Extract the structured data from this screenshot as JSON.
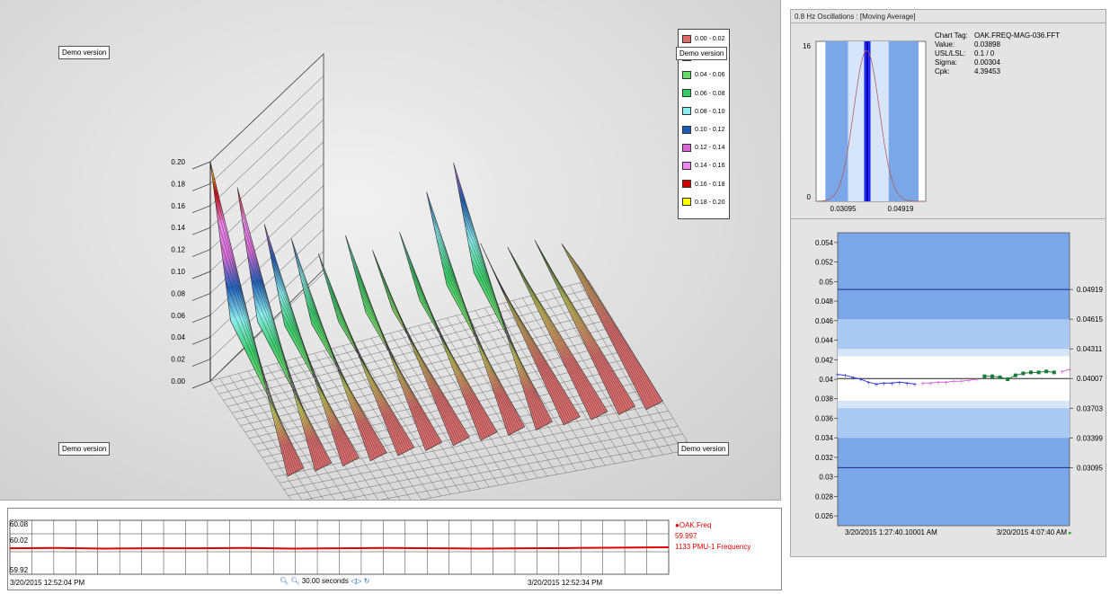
{
  "surface_panel": {
    "demo_labels": [
      "Demo version",
      "Demo version",
      "Demo version",
      "Demo version"
    ],
    "z_ticks": [
      "0.00",
      "0.02",
      "0.04",
      "0.06",
      "0.08",
      "0.10",
      "0.12",
      "0.14",
      "0.16",
      "0.18",
      "0.20"
    ],
    "legend": [
      {
        "label": "0.00 - 0.02",
        "color": "#e06a6a"
      },
      {
        "label": "0.02 - 0.04",
        "color": "#e8e860"
      },
      {
        "label": "0.04 - 0.06",
        "color": "#66dd66"
      },
      {
        "label": "0.06 - 0.08",
        "color": "#33cc66"
      },
      {
        "label": "0.08 - 0.10",
        "color": "#88eeee"
      },
      {
        "label": "0.10 - 0.12",
        "color": "#1a5ab8"
      },
      {
        "label": "0.12 - 0.14",
        "color": "#d868d8"
      },
      {
        "label": "0.14 - 0.16",
        "color": "#ee88ee"
      },
      {
        "label": "0.16 - 0.18",
        "color": "#cc0000"
      },
      {
        "label": "0.18 - 0.20",
        "color": "#ffff00"
      }
    ]
  },
  "histogram_panel": {
    "title": "0.8 Hz Oscillations : [Moving Average]",
    "y_top": "16",
    "y_bottom": "0",
    "x_labels": [
      "0.03095",
      "0.04919"
    ],
    "info": [
      {
        "key": "Chart Tag:",
        "value": "OAK.FREQ-MAG-036.FFT"
      },
      {
        "key": "Value:",
        "value": "0.03898"
      },
      {
        "key": "USL/LSL:",
        "value": "0.1 / 0"
      },
      {
        "key": "Sigma:",
        "value": "0.00304"
      },
      {
        "key": "Cpk:",
        "value": "4.39453"
      }
    ]
  },
  "control_chart": {
    "y_ticks": [
      "0.054",
      "0.052",
      "0.05",
      "0.048",
      "0.046",
      "0.044",
      "0.042",
      "0.04",
      "0.038",
      "0.036",
      "0.034",
      "0.032",
      "0.03",
      "0.028",
      "0.026"
    ],
    "right_labels": [
      "0.04919",
      "0.04615",
      "0.04311",
      "0.04007",
      "0.03703",
      "0.03399",
      "0.03095"
    ],
    "x_labels": [
      "3/20/2015 1:27:40.10001 AM",
      "3/20/2015 4:07:40 AM"
    ],
    "colors": {
      "outer": "#7ba7e8",
      "mid": "#a9c8f2",
      "inner": "#d6e5fa",
      "center": "#ffffff"
    }
  },
  "trend_strip": {
    "y_labels": [
      "60.08",
      "60.02",
      "59.92"
    ],
    "series_name": "OAK.Freq",
    "series_value": "59.997",
    "series_desc": "1133 PMU-1 Frequency",
    "start_time": "3/20/2015 12:52:04 PM",
    "end_time": "3/20/2015 12:52:34 PM",
    "window": "30.00 seconds",
    "line_color": "#e00000"
  },
  "chart_data": [
    {
      "type": "surface",
      "title": "",
      "zlabel": "",
      "zlim": [
        0.0,
        0.2
      ],
      "z_ticks": [
        0.0,
        0.02,
        0.04,
        0.06,
        0.08,
        0.1,
        0.12,
        0.14,
        0.16,
        0.18,
        0.2
      ],
      "legend": [
        "0.00 - 0.02",
        "0.02 - 0.04",
        "0.04 - 0.06",
        "0.06 - 0.08",
        "0.08 - 0.10",
        "0.10 - 0.12",
        "0.12 - 0.14",
        "0.14 - 0.16",
        "0.16 - 0.18",
        "0.18 - 0.20"
      ],
      "ridge_peaks": [
        0.2,
        0.17,
        0.13,
        0.11,
        0.09,
        0.1,
        0.08,
        0.09,
        0.12,
        0.14,
        0.06,
        0.05,
        0.05,
        0.04
      ]
    },
    {
      "type": "histogram",
      "title": "0.8 Hz Oscillations : [Moving Average]",
      "ylim": [
        0,
        16
      ],
      "xlim": [
        0.027,
        0.053
      ],
      "bars": [
        {
          "x0": 0.0292,
          "x1": 0.0346,
          "color": "#7ba7e8"
        },
        {
          "x0": 0.0346,
          "x1": 0.0384,
          "color": "#d6e5fa"
        },
        {
          "x0": 0.0384,
          "x1": 0.0389,
          "color": "#1a1aff"
        },
        {
          "x0": 0.0389,
          "x1": 0.0394,
          "color": "#0000aa"
        },
        {
          "x0": 0.0394,
          "x1": 0.0399,
          "color": "#1a1aff"
        },
        {
          "x0": 0.0399,
          "x1": 0.0442,
          "color": "#d6e5fa"
        },
        {
          "x0": 0.0442,
          "x1": 0.0513,
          "color": "#7ba7e8"
        }
      ],
      "normal_mean": 0.03898,
      "normal_sigma": 0.00304
    },
    {
      "type": "line",
      "title": "",
      "ylim": [
        0.025,
        0.055
      ],
      "ucl": 0.04919,
      "center": 0.04007,
      "lcl": 0.03095,
      "series": [
        {
          "name": "",
          "color": "#3a3ad8",
          "values": [
            0.0405,
            0.0404,
            0.0402,
            0.04,
            0.0397,
            0.0395,
            0.0396,
            0.0396,
            0.0397,
            0.0396,
            0.0395
          ]
        },
        {
          "name": "",
          "color": "#d868d8",
          "values": [
            0.0396,
            0.0396,
            0.0397,
            0.0397,
            0.0398,
            0.0398,
            0.0399,
            0.04
          ]
        },
        {
          "name": "",
          "color": "#1a7a3a",
          "values": [
            0.0403,
            0.0403,
            0.0402,
            0.04,
            0.0404,
            0.0406,
            0.0407,
            0.0407,
            0.0408,
            0.0407
          ]
        },
        {
          "name": "",
          "color": "#d868d8",
          "values": [
            0.0408,
            0.041
          ]
        }
      ]
    },
    {
      "type": "line",
      "title": "",
      "ylim": [
        59.92,
        60.08
      ],
      "series": [
        {
          "name": "OAK.Freq",
          "values": [
            59.997,
            59.998,
            59.996,
            59.997,
            59.997,
            59.998,
            59.996,
            59.997,
            59.998,
            59.997,
            59.996,
            59.997,
            59.998,
            59.999,
            60.0
          ]
        }
      ]
    }
  ]
}
